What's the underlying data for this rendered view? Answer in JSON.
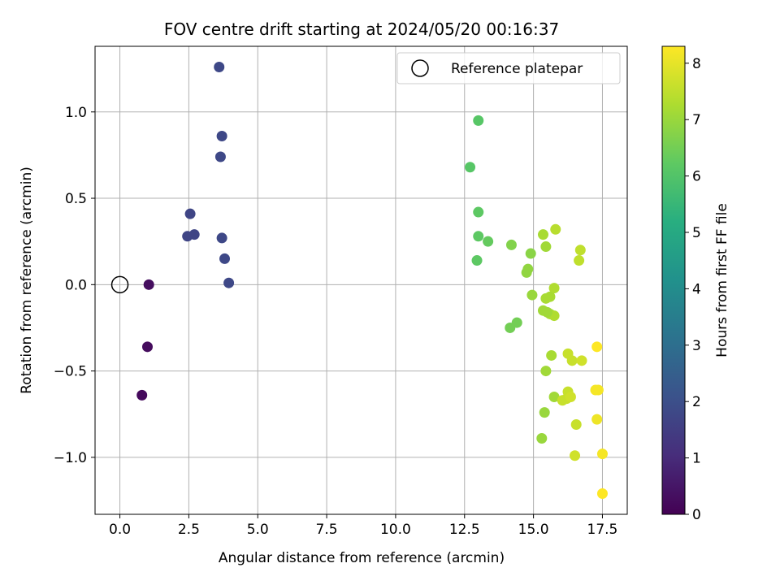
{
  "chart_data": {
    "type": "scatter",
    "title": "FOV centre drift starting at 2024/05/20 00:16:37",
    "xlabel": "Angular distance from reference (arcmin)",
    "ylabel": "Rotation from reference (arcmin)",
    "xlim": [
      -0.9,
      18.4
    ],
    "ylim": [
      -1.33,
      1.38
    ],
    "grid": true,
    "x_ticks": [
      0,
      2.5,
      5,
      7.5,
      10,
      12.5,
      15,
      17.5
    ],
    "x_tick_labels": [
      "0.0",
      "2.5",
      "5.0",
      "7.5",
      "10.0",
      "12.5",
      "15.0",
      "17.5"
    ],
    "y_ticks": [
      -1,
      -0.5,
      0,
      0.5,
      1
    ],
    "y_tick_labels": [
      "−1.0",
      "−0.5",
      "0.0",
      "0.5",
      "1.0"
    ],
    "legend": {
      "placement": "top-right",
      "entries": [
        "Reference platepar"
      ]
    },
    "colorbar": {
      "label": "Hours from first FF file",
      "colormap": "viridis",
      "range": [
        0,
        8.3
      ],
      "ticks": [
        0,
        1,
        2,
        3,
        4,
        5,
        6,
        7,
        8
      ],
      "tick_labels": [
        "0",
        "1",
        "2",
        "3",
        "4",
        "5",
        "6",
        "7",
        "8"
      ]
    },
    "reference_point": {
      "x": 0,
      "y": 0
    },
    "points": [
      {
        "x": 1.05,
        "y": 0.0,
        "c": 0.3
      },
      {
        "x": 1.0,
        "y": -0.36,
        "c": 0.25
      },
      {
        "x": 0.8,
        "y": -0.64,
        "c": 0.2
      },
      {
        "x": 3.6,
        "y": 1.26,
        "c": 1.8
      },
      {
        "x": 3.7,
        "y": 0.86,
        "c": 1.8
      },
      {
        "x": 3.65,
        "y": 0.74,
        "c": 1.8
      },
      {
        "x": 2.55,
        "y": 0.41,
        "c": 1.7
      },
      {
        "x": 2.45,
        "y": 0.28,
        "c": 1.7
      },
      {
        "x": 2.7,
        "y": 0.29,
        "c": 1.7
      },
      {
        "x": 3.7,
        "y": 0.27,
        "c": 1.8
      },
      {
        "x": 3.8,
        "y": 0.15,
        "c": 1.8
      },
      {
        "x": 3.95,
        "y": 0.01,
        "c": 1.8
      },
      {
        "x": 13.0,
        "y": 0.95,
        "c": 6.1
      },
      {
        "x": 12.7,
        "y": 0.68,
        "c": 6.1
      },
      {
        "x": 13.0,
        "y": 0.42,
        "c": 6.2
      },
      {
        "x": 13.0,
        "y": 0.28,
        "c": 6.2
      },
      {
        "x": 13.35,
        "y": 0.25,
        "c": 6.3
      },
      {
        "x": 12.95,
        "y": 0.14,
        "c": 6.2
      },
      {
        "x": 14.2,
        "y": 0.23,
        "c": 6.7
      },
      {
        "x": 14.4,
        "y": -0.22,
        "c": 6.5
      },
      {
        "x": 14.15,
        "y": -0.25,
        "c": 6.5
      },
      {
        "x": 14.9,
        "y": 0.18,
        "c": 6.8
      },
      {
        "x": 15.35,
        "y": 0.29,
        "c": 7.2
      },
      {
        "x": 15.45,
        "y": 0.22,
        "c": 7.1
      },
      {
        "x": 15.8,
        "y": 0.32,
        "c": 7.4
      },
      {
        "x": 14.8,
        "y": 0.09,
        "c": 6.9
      },
      {
        "x": 14.75,
        "y": 0.07,
        "c": 6.9
      },
      {
        "x": 14.95,
        "y": -0.06,
        "c": 7.0
      },
      {
        "x": 15.75,
        "y": -0.02,
        "c": 7.3
      },
      {
        "x": 15.6,
        "y": -0.07,
        "c": 7.2
      },
      {
        "x": 15.45,
        "y": -0.08,
        "c": 7.2
      },
      {
        "x": 15.35,
        "y": -0.15,
        "c": 7.1
      },
      {
        "x": 15.6,
        "y": -0.17,
        "c": 7.2
      },
      {
        "x": 15.75,
        "y": -0.18,
        "c": 7.3
      },
      {
        "x": 15.5,
        "y": -0.16,
        "c": 7.1
      },
      {
        "x": 16.7,
        "y": 0.2,
        "c": 7.5
      },
      {
        "x": 16.65,
        "y": 0.14,
        "c": 7.5
      },
      {
        "x": 15.65,
        "y": -0.41,
        "c": 7.2
      },
      {
        "x": 15.45,
        "y": -0.5,
        "c": 7.1
      },
      {
        "x": 16.25,
        "y": -0.4,
        "c": 7.6
      },
      {
        "x": 16.4,
        "y": -0.44,
        "c": 7.6
      },
      {
        "x": 16.75,
        "y": -0.44,
        "c": 7.7
      },
      {
        "x": 17.3,
        "y": -0.36,
        "c": 8.3
      },
      {
        "x": 15.75,
        "y": -0.65,
        "c": 7.1
      },
      {
        "x": 16.05,
        "y": -0.67,
        "c": 7.6
      },
      {
        "x": 16.25,
        "y": -0.62,
        "c": 7.6
      },
      {
        "x": 16.2,
        "y": -0.66,
        "c": 7.6
      },
      {
        "x": 16.35,
        "y": -0.65,
        "c": 7.7
      },
      {
        "x": 17.25,
        "y": -0.61,
        "c": 8.2
      },
      {
        "x": 17.35,
        "y": -0.61,
        "c": 8.2
      },
      {
        "x": 15.4,
        "y": -0.74,
        "c": 7.0
      },
      {
        "x": 16.55,
        "y": -0.81,
        "c": 7.6
      },
      {
        "x": 17.3,
        "y": -0.78,
        "c": 8.1
      },
      {
        "x": 15.3,
        "y": -0.89,
        "c": 7.0
      },
      {
        "x": 16.5,
        "y": -0.99,
        "c": 7.7
      },
      {
        "x": 17.5,
        "y": -0.98,
        "c": 8.2
      },
      {
        "x": 17.5,
        "y": -1.21,
        "c": 8.3
      }
    ]
  }
}
